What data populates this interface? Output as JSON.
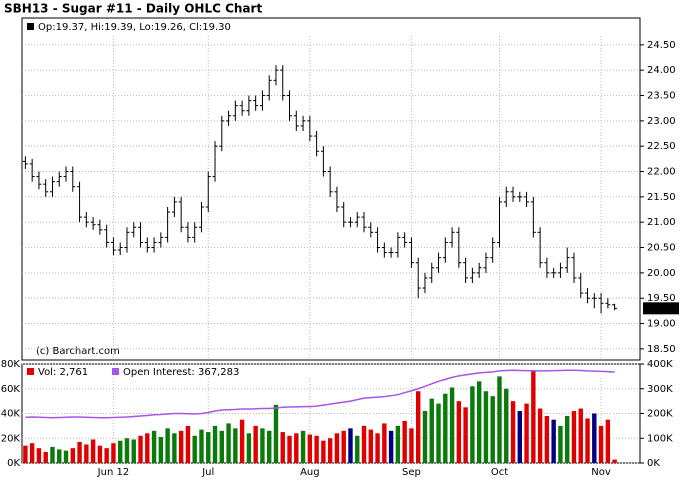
{
  "chart_data": [
    {
      "type": "ohlc",
      "title": "SBH13 - Sugar #11 - Daily OHLC Chart",
      "info": "Op:19.37, Hi:19.39, Lo:19.26, Cl:19.30",
      "credit": "(c) Barchart.com",
      "color": "#000000",
      "open": [
        22.2,
        22.15,
        21.9,
        21.75,
        21.6,
        21.8,
        21.9,
        22.0,
        21.7,
        21.1,
        21.0,
        20.95,
        20.85,
        20.6,
        20.45,
        20.5,
        20.8,
        20.9,
        20.6,
        20.5,
        20.6,
        20.7,
        21.2,
        21.4,
        20.9,
        20.7,
        20.9,
        21.3,
        21.9,
        22.5,
        23.0,
        23.1,
        23.3,
        23.2,
        23.4,
        23.3,
        23.5,
        23.8,
        24.0,
        23.5,
        23.1,
        22.9,
        23.0,
        22.7,
        22.4,
        22.0,
        21.6,
        21.3,
        21.0,
        21.0,
        21.1,
        20.9,
        20.8,
        20.5,
        20.4,
        20.4,
        20.7,
        20.6,
        20.2,
        19.7,
        19.9,
        20.1,
        20.3,
        20.6,
        20.8,
        20.2,
        19.9,
        20.0,
        20.1,
        20.3,
        20.6,
        21.4,
        21.6,
        21.5,
        21.5,
        21.4,
        20.8,
        20.2,
        20.0,
        20.0,
        20.1,
        20.3,
        19.9,
        19.6,
        19.5,
        19.5,
        19.4,
        19.37
      ],
      "high": [
        22.3,
        22.25,
        22.0,
        21.85,
        21.9,
        22.0,
        22.1,
        22.1,
        21.8,
        21.2,
        21.1,
        21.05,
        20.95,
        20.7,
        20.6,
        20.9,
        21.0,
        21.0,
        20.7,
        20.7,
        20.8,
        21.3,
        21.5,
        21.5,
        21.0,
        21.0,
        21.4,
        22.0,
        22.6,
        23.1,
        23.2,
        23.4,
        23.4,
        23.5,
        23.5,
        23.6,
        23.9,
        24.1,
        24.1,
        23.6,
        23.2,
        23.1,
        23.1,
        22.8,
        22.5,
        22.1,
        21.7,
        21.4,
        21.1,
        21.2,
        21.2,
        21.0,
        20.9,
        20.6,
        20.5,
        20.8,
        20.8,
        20.7,
        20.3,
        20.0,
        20.2,
        20.4,
        20.7,
        20.9,
        20.9,
        20.3,
        20.1,
        20.2,
        20.4,
        20.7,
        21.5,
        21.7,
        21.7,
        21.6,
        21.6,
        21.5,
        20.9,
        20.3,
        20.1,
        20.2,
        20.5,
        20.4,
        20.0,
        19.7,
        19.6,
        19.6,
        19.5,
        19.39
      ],
      "low": [
        22.05,
        21.8,
        21.65,
        21.5,
        21.5,
        21.7,
        21.8,
        21.6,
        21.0,
        20.9,
        20.85,
        20.75,
        20.5,
        20.35,
        20.35,
        20.4,
        20.7,
        20.5,
        20.4,
        20.4,
        20.5,
        20.6,
        21.1,
        20.8,
        20.6,
        20.6,
        20.8,
        21.2,
        21.8,
        22.4,
        22.9,
        23.0,
        23.1,
        23.1,
        23.2,
        23.2,
        23.4,
        23.7,
        23.4,
        23.0,
        22.8,
        22.8,
        22.6,
        22.3,
        21.9,
        21.5,
        21.2,
        20.9,
        20.9,
        20.9,
        20.8,
        20.7,
        20.4,
        20.3,
        20.3,
        20.3,
        20.5,
        20.1,
        19.5,
        19.6,
        19.8,
        20.0,
        20.2,
        20.5,
        20.1,
        19.8,
        19.8,
        19.9,
        20.0,
        20.2,
        20.5,
        21.3,
        21.4,
        21.4,
        21.3,
        20.7,
        20.1,
        19.9,
        19.9,
        19.9,
        20.0,
        19.8,
        19.5,
        19.4,
        19.3,
        19.2,
        19.3,
        19.26
      ],
      "close": [
        22.15,
        21.9,
        21.75,
        21.6,
        21.8,
        21.9,
        22.0,
        21.7,
        21.1,
        21.0,
        20.95,
        20.85,
        20.6,
        20.45,
        20.5,
        20.8,
        20.9,
        20.6,
        20.5,
        20.6,
        20.7,
        21.2,
        21.4,
        20.9,
        20.7,
        20.9,
        21.3,
        21.9,
        22.5,
        23.0,
        23.1,
        23.3,
        23.2,
        23.4,
        23.3,
        23.5,
        23.8,
        24.0,
        23.5,
        23.1,
        22.9,
        23.0,
        22.7,
        22.4,
        22.0,
        21.6,
        21.3,
        21.0,
        21.0,
        21.1,
        20.9,
        20.8,
        20.5,
        20.4,
        20.4,
        20.7,
        20.6,
        20.2,
        19.7,
        19.9,
        20.1,
        20.3,
        20.6,
        20.8,
        20.2,
        19.9,
        20.0,
        20.1,
        20.3,
        20.6,
        21.4,
        21.6,
        21.5,
        21.5,
        21.4,
        20.8,
        20.2,
        20.0,
        20.0,
        20.1,
        20.3,
        19.9,
        19.6,
        19.5,
        19.5,
        19.4,
        19.37,
        19.3
      ],
      "last_label": {
        "value": 19.3,
        "label": "19.30"
      },
      "ylim": [
        18.28,
        25.03
      ],
      "yticks": [
        {
          "value": 18.5,
          "label": "18.50"
        },
        {
          "value": 19,
          "label": "19.00"
        },
        {
          "value": 19.5,
          "label": "19.50"
        },
        {
          "value": 20,
          "label": "20.00"
        },
        {
          "value": 20.5,
          "label": "20.50"
        },
        {
          "value": 21,
          "label": "21.00"
        },
        {
          "value": 21.5,
          "label": "21.50"
        },
        {
          "value": 22,
          "label": "22.00"
        },
        {
          "value": 22.5,
          "label": "22.50"
        },
        {
          "value": 23,
          "label": "23.00"
        },
        {
          "value": 23.5,
          "label": "23.50"
        },
        {
          "value": 24,
          "label": "24.00"
        },
        {
          "value": 24.5,
          "label": "24.50"
        }
      ],
      "grid": true
    },
    {
      "type": "bar",
      "categories": [
        null,
        null,
        null,
        null,
        null,
        null,
        null,
        null,
        null,
        null,
        null,
        null,
        null,
        "Jun 12",
        null,
        null,
        null,
        null,
        null,
        null,
        null,
        null,
        null,
        null,
        null,
        null,
        null,
        "Jul",
        null,
        null,
        null,
        null,
        null,
        null,
        null,
        null,
        null,
        null,
        null,
        null,
        null,
        null,
        "Aug",
        null,
        null,
        null,
        null,
        null,
        null,
        null,
        null,
        null,
        null,
        null,
        null,
        null,
        null,
        "Sep",
        null,
        null,
        null,
        null,
        null,
        null,
        null,
        null,
        null,
        null,
        null,
        null,
        "Oct",
        null,
        null,
        null,
        null,
        null,
        null,
        null,
        null,
        null,
        null,
        null,
        null,
        null,
        null,
        "Nov",
        null,
        null
      ],
      "series": [
        {
          "name": "Vol: 2,761",
          "color": "#e00000",
          "up_color": "#0a7a0a",
          "down_color": "#e00000",
          "flat_color": "#000080",
          "values": [
            14000,
            16000,
            12000,
            9000,
            13000,
            11000,
            10000,
            12000,
            17000,
            15000,
            19000,
            14000,
            12000,
            16000,
            18000,
            20000,
            19000,
            22000,
            24000,
            26000,
            21000,
            28000,
            24000,
            26000,
            30000,
            22000,
            27000,
            25000,
            30000,
            26000,
            32000,
            28000,
            35000,
            24000,
            30000,
            28000,
            26000,
            47000,
            25000,
            22000,
            24000,
            26000,
            23000,
            22000,
            18000,
            20000,
            24000,
            26000,
            28000,
            22000,
            30000,
            27000,
            24000,
            32000,
            26000,
            30000,
            34000,
            28000,
            58000,
            42000,
            52000,
            48000,
            56000,
            61000,
            50000,
            45000,
            62000,
            66000,
            58000,
            54000,
            70000,
            60000,
            50000,
            42000,
            48000,
            75000,
            44000,
            38000,
            35000,
            30000,
            38000,
            42000,
            44000,
            36000,
            40000,
            30000,
            35000,
            2761
          ]
        },
        {
          "name": "Open Interest: 367,283",
          "type": "line",
          "axis": "y2",
          "color": "#a855e8",
          "values": [
            185000,
            186000,
            185000,
            184000,
            183000,
            184000,
            185000,
            186000,
            186000,
            185000,
            184000,
            183000,
            183000,
            184000,
            185000,
            186000,
            188000,
            190000,
            192000,
            195000,
            196000,
            198000,
            200000,
            200000,
            199000,
            198000,
            200000,
            204000,
            210000,
            214000,
            215000,
            216000,
            218000,
            218000,
            219000,
            220000,
            220000,
            222000,
            225000,
            226000,
            227000,
            228000,
            228000,
            230000,
            234000,
            238000,
            242000,
            246000,
            250000,
            256000,
            262000,
            264000,
            266000,
            268000,
            272000,
            276000,
            284000,
            292000,
            300000,
            310000,
            320000,
            330000,
            338000,
            346000,
            352000,
            356000,
            360000,
            364000,
            366000,
            368000,
            372000,
            374000,
            375000,
            374000,
            373000,
            372000,
            372000,
            372000,
            373000,
            374000,
            375000,
            375000,
            374000,
            372000,
            371000,
            370000,
            369000,
            367283
          ]
        }
      ],
      "ylim": [
        0,
        80000
      ],
      "yticks": [
        {
          "value": 0,
          "label": "0K"
        },
        {
          "value": 20000,
          "label": "20K"
        },
        {
          "value": 40000,
          "label": "40K"
        },
        {
          "value": 60000,
          "label": "60K"
        },
        {
          "value": 80000,
          "label": "80K"
        }
      ],
      "y2lim": [
        0,
        400000
      ],
      "y2ticks": [
        {
          "value": 0,
          "label": "0K"
        },
        {
          "value": 100000,
          "label": "100K"
        },
        {
          "value": 200000,
          "label": "200K"
        },
        {
          "value": 300000,
          "label": "300K"
        },
        {
          "value": 400000,
          "label": "400K"
        }
      ],
      "grid": true
    }
  ]
}
